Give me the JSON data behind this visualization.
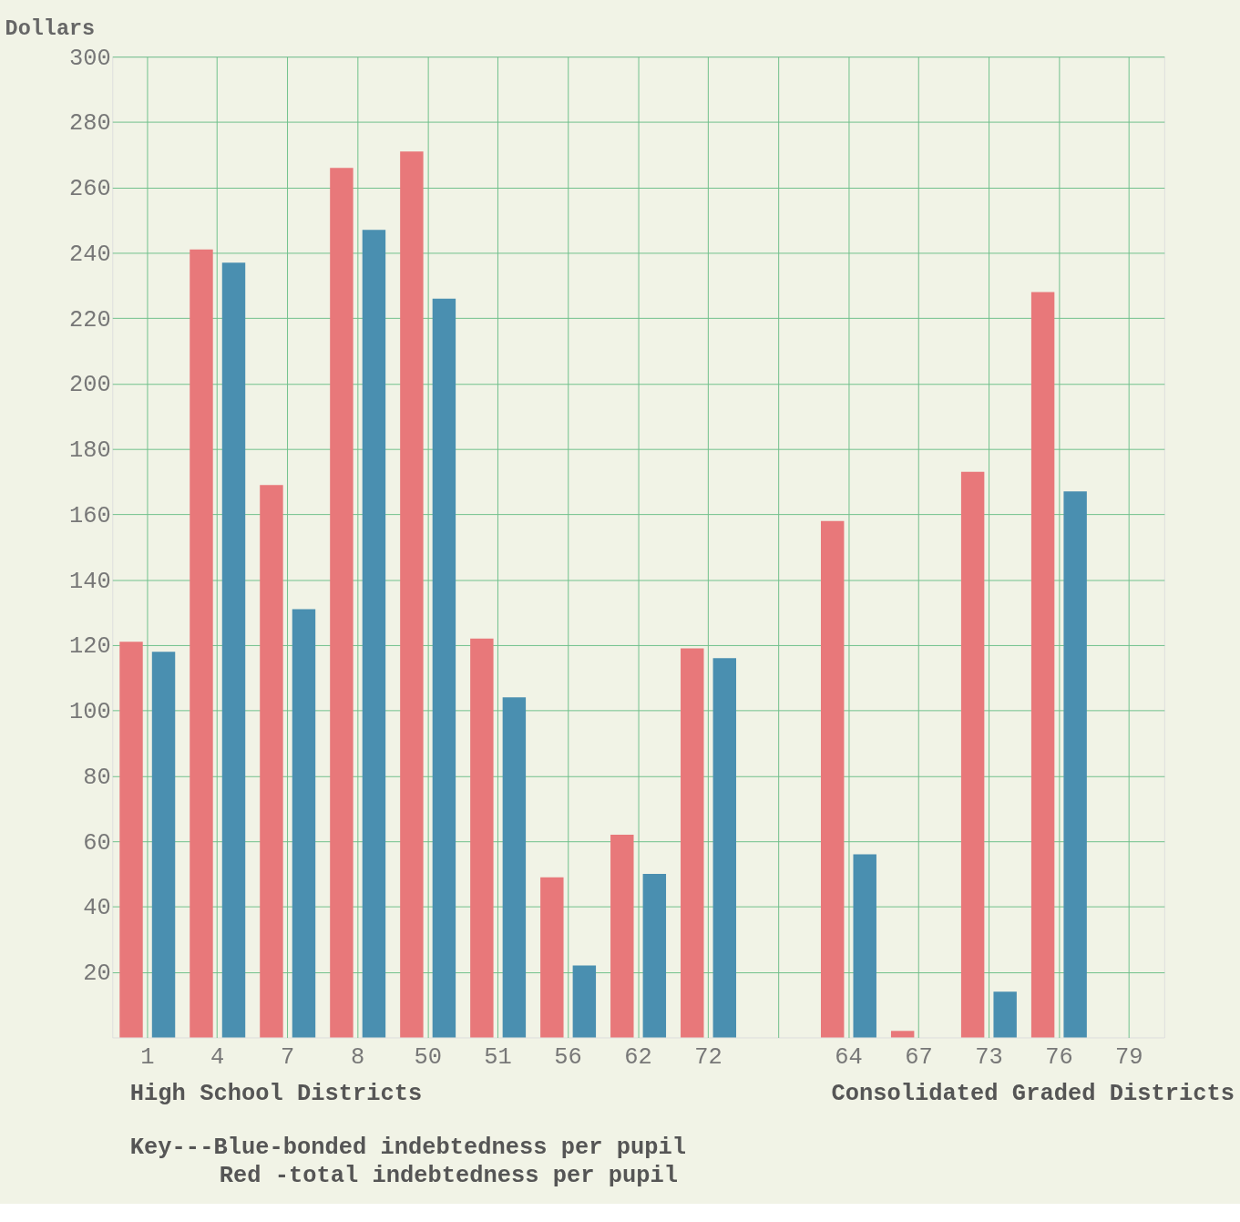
{
  "chart_data": {
    "type": "bar",
    "ylabel": "Dollars",
    "categories": [
      "1",
      "4",
      "7",
      "8",
      "50",
      "51",
      "56",
      "62",
      "72",
      null,
      "64",
      "67",
      "73",
      "76",
      "79"
    ],
    "series": [
      {
        "color": "#e8787a",
        "values": [
          121,
          241,
          169,
          266,
          271,
          122,
          49,
          62,
          119,
          null,
          158,
          2,
          173,
          228,
          null
        ]
      },
      {
        "color": "#4a8fb0",
        "values": [
          118,
          237,
          131,
          247,
          226,
          104,
          22,
          50,
          116,
          null,
          56,
          null,
          14,
          167,
          null
        ]
      }
    ],
    "ylim": [
      0,
      300
    ],
    "yticks": [
      20,
      40,
      60,
      80,
      100,
      120,
      140,
      160,
      180,
      200,
      220,
      240,
      260,
      280,
      300
    ],
    "grid": true,
    "legend": false,
    "annotations": [
      "High School Districts",
      "Consolidated Graded Districts",
      "Key---Blue-bonded indebtedness per pupil",
      "Red -total indebtedness per pupil"
    ]
  }
}
